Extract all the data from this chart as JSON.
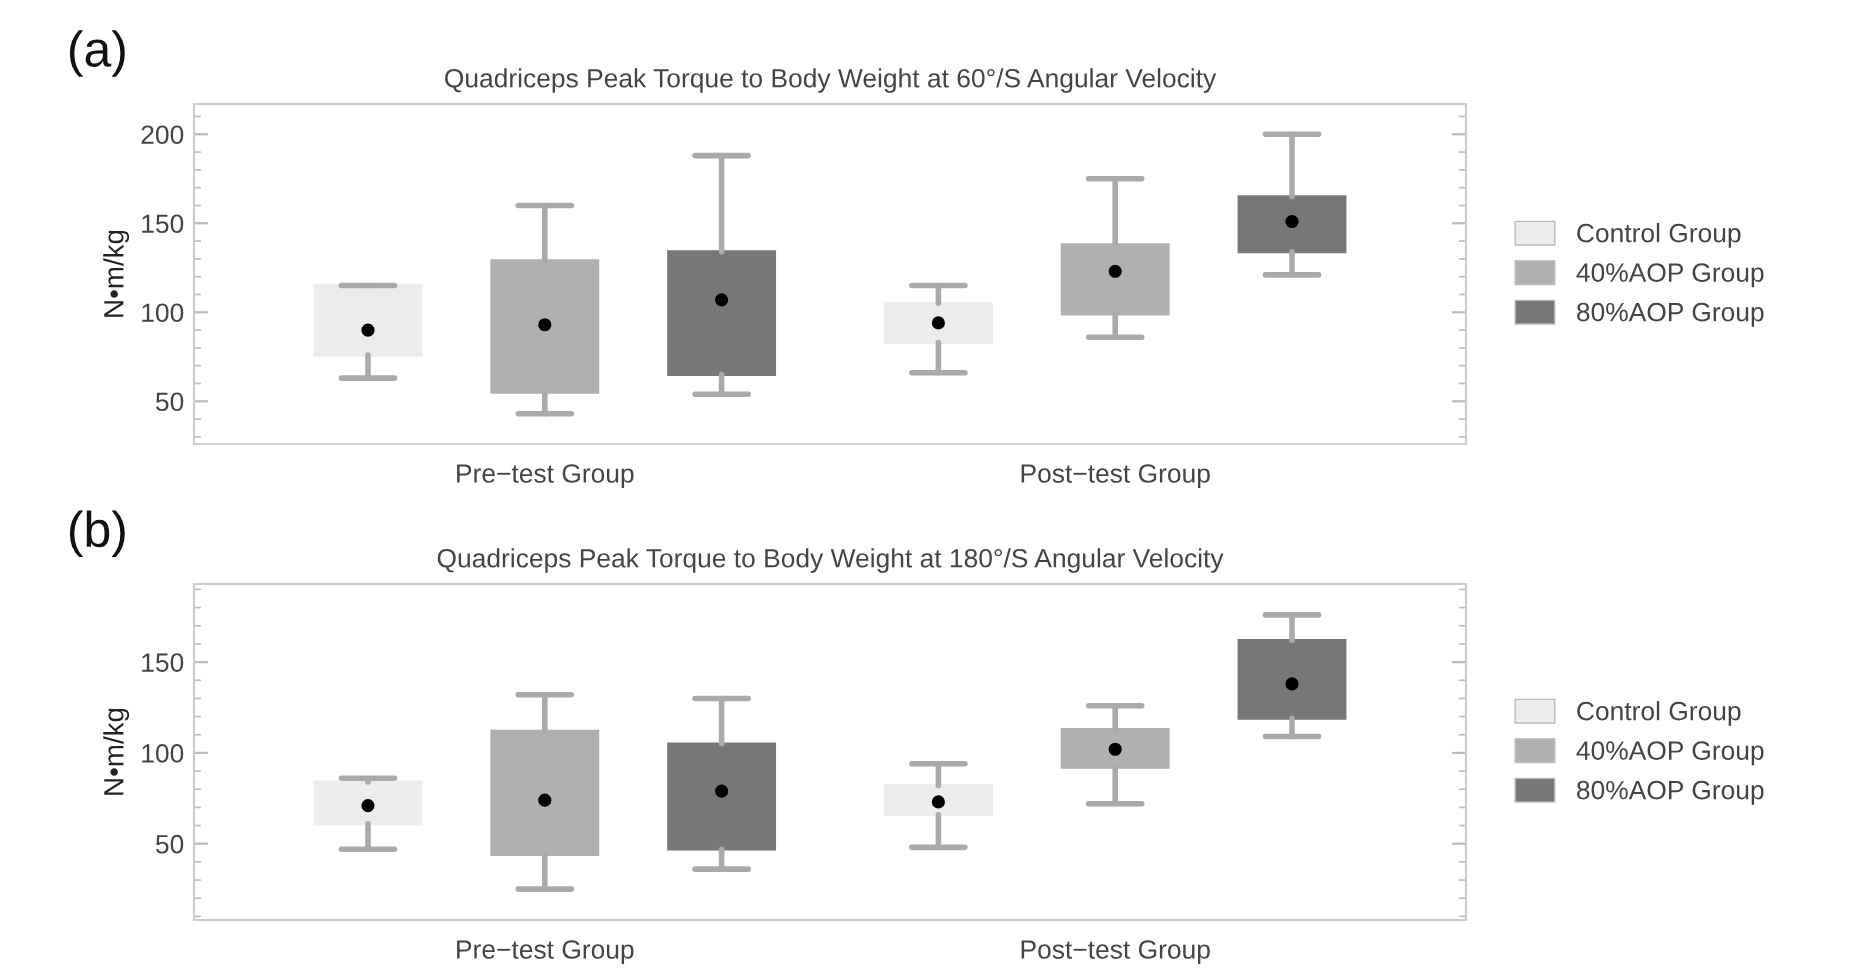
{
  "chart_data": [
    {
      "type": "box",
      "title": "Quadriceps Peak Torque to Body Weight at 60°/S Angular Velocity",
      "ylabel": "N•m/kg",
      "annotations": [
        "(a)"
      ],
      "categories": [
        "Pre−test Group",
        "Post−test Group"
      ],
      "ylim": [
        26,
        217
      ],
      "yticks": [
        50,
        100,
        150,
        200
      ],
      "grid": false,
      "legend": "right",
      "series": [
        {
          "name": "Control Group",
          "color": "#ececec",
          "boxes": [
            {
              "low": 63,
              "q1": 76,
              "median": 90,
              "q3": 115,
              "high": 115
            },
            {
              "low": 66,
              "q1": 83,
              "median": 94,
              "q3": 105,
              "high": 115
            }
          ]
        },
        {
          "name": "40%AOP Group",
          "color": "#b0b0b0",
          "boxes": [
            {
              "low": 43,
              "q1": 55,
              "median": 93,
              "q3": 129,
              "high": 160
            },
            {
              "low": 86,
              "q1": 99,
              "median": 123,
              "q3": 138,
              "high": 175
            }
          ]
        },
        {
          "name": "80%AOP Group",
          "color": "#777777",
          "boxes": [
            {
              "low": 54,
              "q1": 65,
              "median": 107,
              "q3": 134,
              "high": 188
            },
            {
              "low": 121,
              "q1": 134,
              "median": 151,
              "q3": 165,
              "high": 200
            }
          ]
        }
      ]
    },
    {
      "type": "box",
      "title": "Quadriceps Peak Torque to Body Weight at 180°/S Angular Velocity",
      "ylabel": "N•m/kg",
      "annotations": [
        "(b)"
      ],
      "categories": [
        "Pre−test Group",
        "Post−test Group"
      ],
      "ylim": [
        8,
        193
      ],
      "yticks": [
        50,
        100,
        150
      ],
      "grid": false,
      "legend": "right",
      "series": [
        {
          "name": "Control Group",
          "color": "#ececec",
          "boxes": [
            {
              "low": 47,
              "q1": 61,
              "median": 71,
              "q3": 84,
              "high": 86
            },
            {
              "low": 48,
              "q1": 66,
              "median": 73,
              "q3": 82,
              "high": 94
            }
          ]
        },
        {
          "name": "40%AOP Group",
          "color": "#b0b0b0",
          "boxes": [
            {
              "low": 25,
              "q1": 44,
              "median": 74,
              "q3": 112,
              "high": 132
            },
            {
              "low": 72,
              "q1": 92,
              "median": 102,
              "q3": 113,
              "high": 126
            }
          ]
        },
        {
          "name": "80%AOP Group",
          "color": "#777777",
          "boxes": [
            {
              "low": 36,
              "q1": 47,
              "median": 79,
              "q3": 105,
              "high": 130
            },
            {
              "low": 109,
              "q1": 119,
              "median": 138,
              "q3": 162,
              "high": 176
            }
          ]
        }
      ]
    }
  ]
}
